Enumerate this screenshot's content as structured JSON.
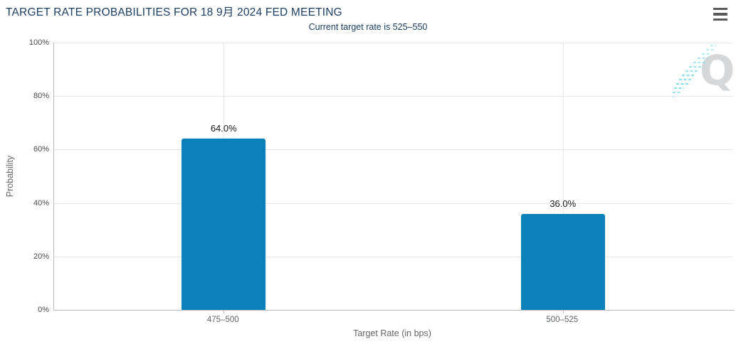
{
  "chart_data": {
    "type": "bar",
    "title": "TARGET RATE PROBABILITIES FOR 18 9月 2024 FED MEETING",
    "subtitle": "Current target rate is 525–550",
    "categories": [
      "475–500",
      "500–525"
    ],
    "values": [
      64.0,
      36.0
    ],
    "data_labels": [
      "64.0%",
      "36.0%"
    ],
    "xlabel": "Target Rate (in bps)",
    "ylabel": "Probability",
    "ylim": [
      0,
      100
    ],
    "yticks": [
      0,
      20,
      40,
      60,
      80,
      100
    ],
    "ytick_labels": [
      "0%",
      "20%",
      "40%",
      "60%",
      "80%",
      "100%"
    ],
    "grid": true,
    "legend": false,
    "bar_color": "#0c80b8"
  },
  "icons": {
    "context_menu": "hamburger-icon",
    "watermark": "q-logo-watermark"
  },
  "watermark": {
    "letter": "Q"
  },
  "colors": {
    "title_text": "#1d3e63",
    "bar": "#0c80b8",
    "grid_line": "#e7e7e7",
    "axis_line": "#b3b9be",
    "axis_label": "#4a4a4a",
    "axis_title": "#666666",
    "data_label": "#1a1a1a",
    "watermark_letter": "#c7c9cb",
    "watermark_dash": "#7fdbe8"
  }
}
